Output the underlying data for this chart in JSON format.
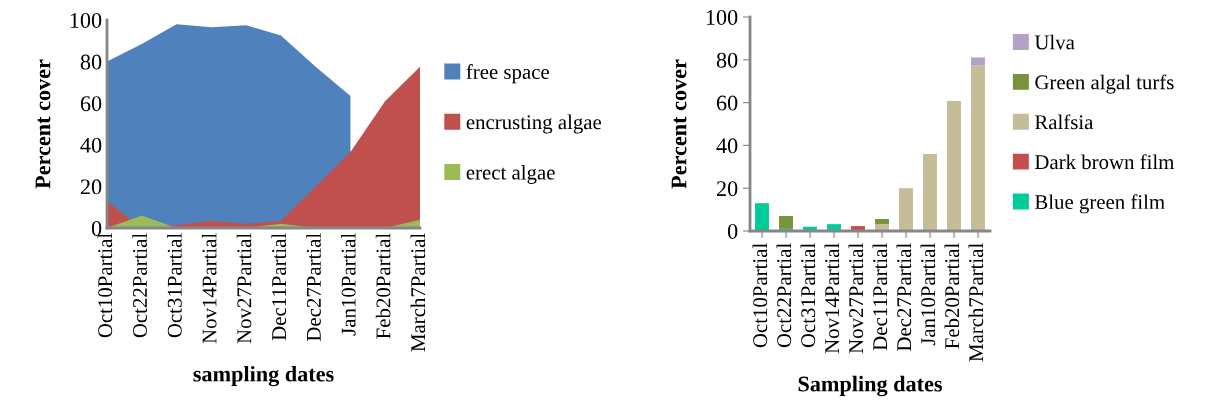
{
  "chart_data": [
    {
      "type": "area",
      "xlabel": "sampling dates",
      "ylabel": "Percent cover",
      "categories": [
        "Oct10Partial",
        "Oct22Partial",
        "Oct31Partial",
        "Nov14Partial",
        "Nov27Partial",
        "Dec11Partial",
        "Dec27Partial",
        "Jan10Partial",
        "Feb20Partial",
        "March7Partial"
      ],
      "series": [
        {
          "name": "free space",
          "color": "#4f81bd",
          "values": [
            80,
            88.5,
            98,
            96.5,
            97.5,
            92.5,
            77.5,
            63.5,
            null,
            null
          ]
        },
        {
          "name": "encrusting algae",
          "color": "#c0504d",
          "values": [
            13,
            0,
            1.5,
            3.5,
            2,
            3.5,
            20,
            36.5,
            61,
            77.5
          ]
        },
        {
          "name": "erect algae",
          "color": "#9bbb59",
          "values": [
            0,
            6,
            0,
            0,
            0,
            2,
            0,
            0,
            0,
            4
          ]
        }
      ],
      "ylim": [
        0,
        100
      ],
      "yticks": [
        0,
        20,
        40,
        60,
        80,
        100
      ],
      "grid": false,
      "legend": "right"
    },
    {
      "type": "bar",
      "stacked": true,
      "xlabel": "Sampling dates",
      "ylabel": "Percent cover",
      "categories": [
        "Oct10Partial",
        "Oct22Partial",
        "Oct31Partial",
        "Nov14Partial",
        "Nov27Partial",
        "Dec11Partial",
        "Dec27Partial",
        "Jan10Partial",
        "Feb20Partial",
        "March7Partial"
      ],
      "series": [
        {
          "name": "Blue green film",
          "color": "#00cc99",
          "values": [
            13,
            1,
            2,
            3.2,
            0,
            0,
            0,
            0,
            0,
            0
          ]
        },
        {
          "name": "Dark brown film",
          "color": "#c0504d",
          "values": [
            0,
            0,
            0,
            0,
            2.3,
            0,
            0,
            0,
            0,
            0
          ]
        },
        {
          "name": "Ralfsia",
          "color": "#c4bd97",
          "values": [
            0,
            0,
            0,
            0,
            0,
            3.2,
            20,
            36,
            60.7,
            77.3
          ]
        },
        {
          "name": "Green algal turfs",
          "color": "#77933c",
          "values": [
            0,
            6,
            0,
            0,
            0,
            2.4,
            0,
            0,
            0,
            0
          ]
        },
        {
          "name": "Ulva",
          "color": "#b3a2c7",
          "values": [
            0,
            0,
            0,
            0,
            0,
            0,
            0,
            0,
            0,
            3.8
          ]
        }
      ],
      "ylim": [
        0,
        100
      ],
      "yticks": [
        0,
        20,
        40,
        60,
        80,
        100
      ],
      "grid": false,
      "legend": "right"
    }
  ]
}
